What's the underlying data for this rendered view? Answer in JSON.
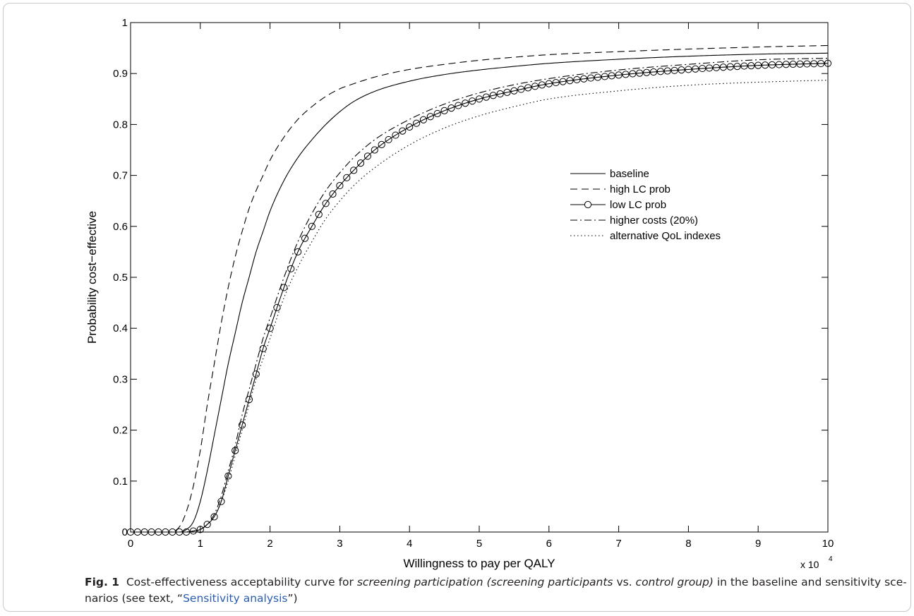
{
  "chart_data": {
    "type": "line",
    "xlabel": "Willingness to pay per QALY",
    "ylabel": "Probability cost−effective",
    "x_multiplier_label": {
      "base": "x 10",
      "exp": "4"
    },
    "xlim": [
      0,
      10
    ],
    "ylim": [
      0,
      1
    ],
    "x_ticks": [
      0,
      1,
      2,
      3,
      4,
      5,
      6,
      7,
      8,
      9,
      10
    ],
    "y_ticks": [
      0,
      0.1,
      0.2,
      0.3,
      0.4,
      0.5,
      0.6,
      0.7,
      0.8,
      0.9,
      1
    ],
    "legend_position": "right-center",
    "grid": false,
    "x": [
      0,
      0.5,
      0.7,
      0.8,
      0.9,
      1.0,
      1.1,
      1.2,
      1.3,
      1.4,
      1.5,
      1.6,
      1.7,
      1.8,
      1.9,
      2.0,
      2.2,
      2.4,
      2.6,
      2.8,
      3.0,
      3.2,
      3.5,
      4.0,
      4.5,
      5.0,
      5.5,
      6.0,
      7.0,
      8.0,
      9.0,
      10.0
    ],
    "series": [
      {
        "name": "baseline",
        "style": "solid",
        "values": [
          0,
          0,
          0,
          0.005,
          0.02,
          0.06,
          0.12,
          0.19,
          0.26,
          0.33,
          0.39,
          0.45,
          0.5,
          0.55,
          0.59,
          0.63,
          0.69,
          0.735,
          0.77,
          0.8,
          0.825,
          0.845,
          0.865,
          0.885,
          0.898,
          0.907,
          0.914,
          0.92,
          0.928,
          0.934,
          0.938,
          0.94
        ]
      },
      {
        "name": "high LC prob",
        "style": "dashed",
        "values": [
          0,
          0,
          0.01,
          0.04,
          0.09,
          0.16,
          0.25,
          0.33,
          0.41,
          0.48,
          0.54,
          0.59,
          0.635,
          0.67,
          0.7,
          0.73,
          0.775,
          0.81,
          0.835,
          0.855,
          0.87,
          0.88,
          0.893,
          0.908,
          0.918,
          0.926,
          0.932,
          0.937,
          0.943,
          0.948,
          0.952,
          0.955
        ]
      },
      {
        "name": "low LC prob",
        "style": "solid-circle",
        "values": [
          0,
          0,
          0,
          0,
          0.002,
          0.005,
          0.015,
          0.03,
          0.06,
          0.11,
          0.16,
          0.21,
          0.26,
          0.31,
          0.36,
          0.4,
          0.48,
          0.55,
          0.6,
          0.645,
          0.68,
          0.71,
          0.75,
          0.795,
          0.827,
          0.85,
          0.866,
          0.88,
          0.897,
          0.908,
          0.916,
          0.92
        ]
      },
      {
        "name": "higher costs (20%)",
        "style": "dashdot",
        "values": [
          0,
          0,
          0,
          0,
          0.002,
          0.005,
          0.015,
          0.035,
          0.07,
          0.12,
          0.17,
          0.23,
          0.28,
          0.33,
          0.38,
          0.42,
          0.5,
          0.57,
          0.625,
          0.67,
          0.705,
          0.735,
          0.77,
          0.81,
          0.84,
          0.862,
          0.878,
          0.89,
          0.907,
          0.918,
          0.927,
          0.93
        ]
      },
      {
        "name": "alternative QoL indexes",
        "style": "dotted",
        "values": [
          0,
          0,
          0,
          0,
          0.002,
          0.005,
          0.015,
          0.03,
          0.06,
          0.1,
          0.15,
          0.2,
          0.25,
          0.3,
          0.34,
          0.38,
          0.46,
          0.52,
          0.57,
          0.615,
          0.65,
          0.68,
          0.715,
          0.76,
          0.793,
          0.817,
          0.835,
          0.85,
          0.866,
          0.877,
          0.883,
          0.887
        ]
      }
    ]
  },
  "caption": {
    "label": "Fig. 1",
    "pre": "Cost-effectiveness acceptability curve for ",
    "italic1": "screening participation (screening participants",
    "vs": " vs. ",
    "italic2": "control group)",
    "mid": " in the baseline and sensitivity sce-narios (see text, “",
    "link": "Sensitivity analysis",
    "post": "”)"
  }
}
